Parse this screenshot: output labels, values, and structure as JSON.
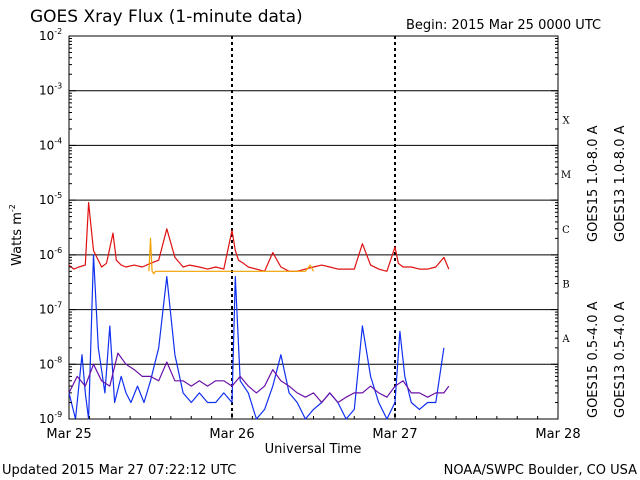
{
  "header": {
    "title": "GOES Xray Flux (1-minute data)",
    "begin_label": "Begin:  2015 Mar 25 0000 UTC"
  },
  "footer": {
    "updated": "Updated 2015 Mar 27 07:22:12 UTC",
    "credit": "NOAA/SWPC Boulder, CO USA"
  },
  "colors": {
    "goes15_long": "#e01010",
    "goes13_long": "#f0a000",
    "goes15_short": "#1030f0",
    "goes13_short": "#6a10a8"
  },
  "chart_data": {
    "type": "line",
    "title": "GOES Xray Flux (1-minute data)",
    "xlabel": "Universal Time",
    "ylabel": "Watts m",
    "ylabel_superscript": "-2",
    "y_scale": "log",
    "ylim": [
      1e-09,
      0.01
    ],
    "y_ticks": [
      {
        "base": "10",
        "exp": "-9",
        "value": 1e-09
      },
      {
        "base": "10",
        "exp": "-8",
        "value": 1e-08
      },
      {
        "base": "10",
        "exp": "-7",
        "value": 1e-07
      },
      {
        "base": "10",
        "exp": "-6",
        "value": 1e-06
      },
      {
        "base": "10",
        "exp": "-5",
        "value": 1e-05
      },
      {
        "base": "10",
        "exp": "-4",
        "value": 0.0001
      },
      {
        "base": "10",
        "exp": "-3",
        "value": 0.001
      },
      {
        "base": "10",
        "exp": "-2",
        "value": 0.01
      }
    ],
    "x_ticks": [
      "Mar 25",
      "Mar 26",
      "Mar 27",
      "Mar 28"
    ],
    "xlim_days": [
      0,
      3
    ],
    "flare_classes": [
      {
        "label": "A",
        "value": 3e-08
      },
      {
        "label": "B",
        "value": 3e-07
      },
      {
        "label": "C",
        "value": 3e-06
      },
      {
        "label": "M",
        "value": 3e-05
      },
      {
        "label": "X",
        "value": 0.0003
      }
    ],
    "grid": true,
    "legend": "right",
    "series": [
      {
        "name": "GOES15 1.0-8.0 A",
        "color": "#e01010",
        "x": [
          0,
          0.03,
          0.06,
          0.1,
          0.12,
          0.15,
          0.2,
          0.23,
          0.27,
          0.29,
          0.32,
          0.35,
          0.4,
          0.45,
          0.5,
          0.55,
          0.6,
          0.65,
          0.7,
          0.74,
          0.8,
          0.85,
          0.9,
          0.95,
          1.0,
          1.02,
          1.04,
          1.07,
          1.1,
          1.15,
          1.2,
          1.25,
          1.3,
          1.35,
          1.4,
          1.45,
          1.5,
          1.55,
          1.6,
          1.65,
          1.7,
          1.75,
          1.8,
          1.85,
          1.9,
          1.95,
          2.0,
          2.02,
          2.05,
          2.1,
          2.15,
          2.2,
          2.25,
          2.3,
          2.33
        ],
        "y": [
          6.5e-07,
          5.5e-07,
          6e-07,
          6.5e-07,
          9e-06,
          1.2e-06,
          6e-07,
          7e-07,
          2.5e-06,
          8e-07,
          6.5e-07,
          6e-07,
          6.5e-07,
          6e-07,
          7e-07,
          8e-07,
          3e-06,
          9e-07,
          6e-07,
          6.5e-07,
          6e-07,
          5.5e-07,
          6e-07,
          5.5e-07,
          2.8e-06,
          1.2e-06,
          8e-07,
          7e-07,
          6e-07,
          5.5e-07,
          5e-07,
          1.1e-06,
          6e-07,
          5e-07,
          5e-07,
          5.5e-07,
          6e-07,
          6.5e-07,
          6e-07,
          5.5e-07,
          5.5e-07,
          5.5e-07,
          1.6e-06,
          6.5e-07,
          5.5e-07,
          5e-07,
          1.4e-06,
          7e-07,
          6e-07,
          6e-07,
          5.5e-07,
          5.5e-07,
          6e-07,
          9e-07,
          5.5e-07
        ]
      },
      {
        "name": "GOES13 1.0-8.0 A",
        "color": "#f0a000",
        "x": [
          0.49,
          0.5,
          0.51,
          0.52,
          0.53,
          1.45,
          1.48,
          1.5
        ],
        "y": [
          5e-07,
          2e-06,
          5e-07,
          4.5e-07,
          5e-07,
          5e-07,
          6.5e-07,
          5e-07
        ]
      },
      {
        "name": "GOES15 0.5-4.0 A",
        "color": "#1030f0",
        "x": [
          0,
          0.04,
          0.08,
          0.1,
          0.12,
          0.15,
          0.18,
          0.22,
          0.25,
          0.28,
          0.32,
          0.35,
          0.38,
          0.42,
          0.46,
          0.5,
          0.55,
          0.6,
          0.65,
          0.7,
          0.75,
          0.8,
          0.85,
          0.9,
          0.95,
          1.0,
          1.02,
          1.05,
          1.1,
          1.15,
          1.2,
          1.25,
          1.3,
          1.35,
          1.4,
          1.45,
          1.5,
          1.55,
          1.6,
          1.65,
          1.7,
          1.75,
          1.8,
          1.85,
          1.9,
          1.95,
          2.0,
          2.03,
          2.06,
          2.1,
          2.15,
          2.2,
          2.25,
          2.3
        ],
        "y": [
          3e-09,
          1e-09,
          1.5e-08,
          3e-09,
          1e-09,
          1e-06,
          2e-08,
          3e-09,
          5e-08,
          2e-09,
          6e-09,
          3e-09,
          2e-09,
          4e-09,
          2e-09,
          5e-09,
          2e-08,
          4e-07,
          1.5e-08,
          3e-09,
          2e-09,
          3e-09,
          2e-09,
          2e-09,
          3e-09,
          2e-09,
          4e-07,
          5e-09,
          3e-09,
          1e-09,
          1.5e-09,
          4e-09,
          1.5e-08,
          3e-09,
          2e-09,
          1e-09,
          1.5e-09,
          2e-09,
          3e-09,
          2e-09,
          1e-09,
          1.5e-09,
          5e-08,
          6e-09,
          2e-09,
          1e-09,
          2e-09,
          4e-08,
          6e-09,
          2e-09,
          1.5e-09,
          2e-09,
          2e-09,
          2e-08
        ]
      },
      {
        "name": "GOES13 0.5-4.0 A",
        "color": "#6a10a8",
        "x": [
          0,
          0.05,
          0.1,
          0.15,
          0.2,
          0.25,
          0.3,
          0.35,
          0.4,
          0.45,
          0.5,
          0.55,
          0.6,
          0.65,
          0.7,
          0.75,
          0.8,
          0.85,
          0.9,
          0.95,
          1.0,
          1.05,
          1.1,
          1.15,
          1.2,
          1.25,
          1.3,
          1.35,
          1.4,
          1.45,
          1.5,
          1.55,
          1.6,
          1.65,
          1.7,
          1.75,
          1.8,
          1.85,
          1.9,
          1.95,
          2.0,
          2.05,
          2.1,
          2.15,
          2.2,
          2.25,
          2.3,
          2.33
        ],
        "y": [
          3e-09,
          6e-09,
          4e-09,
          1e-08,
          5e-09,
          4e-09,
          1.6e-08,
          1e-08,
          8e-09,
          6e-09,
          6e-09,
          5e-09,
          1.1e-08,
          5e-09,
          5e-09,
          4e-09,
          5e-09,
          4e-09,
          5e-09,
          5e-09,
          4e-09,
          6e-09,
          4e-09,
          3e-09,
          4e-09,
          8e-09,
          5e-09,
          4e-09,
          3e-09,
          2.5e-09,
          3e-09,
          2e-09,
          3e-09,
          2e-09,
          2.5e-09,
          3e-09,
          3e-09,
          4e-09,
          3e-09,
          2.5e-09,
          4e-09,
          5e-09,
          3e-09,
          3e-09,
          2.5e-09,
          3e-09,
          3e-09,
          4e-09
        ]
      }
    ]
  }
}
